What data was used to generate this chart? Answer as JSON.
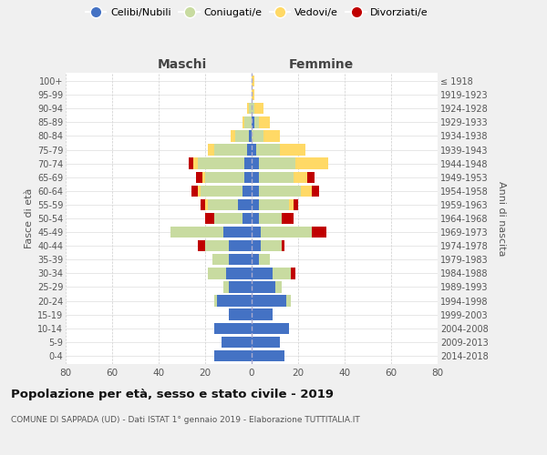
{
  "age_groups": [
    "0-4",
    "5-9",
    "10-14",
    "15-19",
    "20-24",
    "25-29",
    "30-34",
    "35-39",
    "40-44",
    "45-49",
    "50-54",
    "55-59",
    "60-64",
    "65-69",
    "70-74",
    "75-79",
    "80-84",
    "85-89",
    "90-94",
    "95-99",
    "100+"
  ],
  "birth_years": [
    "2014-2018",
    "2009-2013",
    "2004-2008",
    "1999-2003",
    "1994-1998",
    "1989-1993",
    "1984-1988",
    "1979-1983",
    "1974-1978",
    "1969-1973",
    "1964-1968",
    "1959-1963",
    "1954-1958",
    "1949-1953",
    "1944-1948",
    "1939-1943",
    "1934-1938",
    "1929-1933",
    "1924-1928",
    "1919-1923",
    "≤ 1918"
  ],
  "males": {
    "celibi": [
      16,
      13,
      16,
      10,
      15,
      10,
      11,
      10,
      10,
      12,
      4,
      6,
      4,
      3,
      3,
      2,
      1,
      0,
      0,
      0,
      0
    ],
    "coniugati": [
      0,
      0,
      0,
      0,
      1,
      2,
      8,
      7,
      10,
      23,
      12,
      13,
      18,
      17,
      20,
      14,
      6,
      3,
      1,
      0,
      0
    ],
    "vedovi": [
      0,
      0,
      0,
      0,
      0,
      0,
      0,
      0,
      0,
      0,
      0,
      1,
      1,
      1,
      2,
      3,
      2,
      1,
      1,
      0,
      0
    ],
    "divorziati": [
      0,
      0,
      0,
      0,
      0,
      0,
      0,
      0,
      3,
      0,
      4,
      2,
      3,
      3,
      2,
      0,
      0,
      0,
      0,
      0,
      0
    ]
  },
  "females": {
    "nubili": [
      14,
      12,
      16,
      9,
      15,
      10,
      9,
      3,
      4,
      4,
      3,
      3,
      3,
      3,
      3,
      2,
      0,
      1,
      0,
      0,
      0
    ],
    "coniugate": [
      0,
      0,
      0,
      0,
      2,
      3,
      8,
      5,
      9,
      22,
      10,
      13,
      18,
      15,
      16,
      10,
      5,
      2,
      1,
      0,
      0
    ],
    "vedove": [
      0,
      0,
      0,
      0,
      0,
      0,
      0,
      0,
      0,
      0,
      0,
      2,
      5,
      6,
      14,
      11,
      7,
      5,
      4,
      1,
      1
    ],
    "divorziate": [
      0,
      0,
      0,
      0,
      0,
      0,
      2,
      0,
      1,
      6,
      5,
      2,
      3,
      3,
      0,
      0,
      0,
      0,
      0,
      0,
      0
    ]
  },
  "colors": {
    "celibi": "#4472c4",
    "coniugati": "#c8dba0",
    "vedovi": "#ffd966",
    "divorziati": "#c00000"
  },
  "title": "Popolazione per età, sesso e stato civile - 2019",
  "subtitle": "COMUNE DI SAPPADA (UD) - Dati ISTAT 1° gennaio 2019 - Elaborazione TUTTITALIA.IT",
  "xlabel_left": "Maschi",
  "xlabel_right": "Femmine",
  "ylabel_left": "Fasce di età",
  "ylabel_right": "Anni di nascita",
  "xlim": 80,
  "bg_color": "#f0f0f0",
  "plot_bg": "#ffffff",
  "legend_labels": [
    "Celibi/Nubili",
    "Coniugati/e",
    "Vedovi/e",
    "Divorziati/e"
  ]
}
